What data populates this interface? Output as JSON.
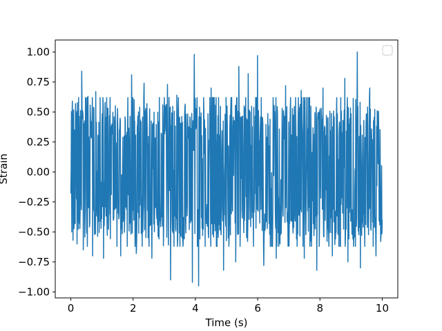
{
  "chart_data": {
    "type": "line",
    "title": "",
    "xlabel": "Time (s)",
    "ylabel": "Strain",
    "xlim": [
      -0.5,
      10.5
    ],
    "ylim": [
      -1.05,
      1.1
    ],
    "xticks": [
      0,
      2,
      4,
      6,
      8,
      10
    ],
    "xtick_labels": [
      "0",
      "2",
      "4",
      "6",
      "8",
      "10"
    ],
    "yticks": [
      -1.0,
      -0.75,
      -0.5,
      -0.25,
      0.0,
      0.25,
      0.5,
      0.75,
      1.0
    ],
    "ytick_labels": [
      "−1.00",
      "−0.75",
      "−0.50",
      "−0.25",
      "0.00",
      "0.25",
      "0.50",
      "0.75",
      "1.00"
    ],
    "grid": false,
    "legend": {
      "placement": "top-right",
      "entries": []
    },
    "series": [
      {
        "color": "#1f77b4",
        "description_of_signal": "",
        "x_start": 0,
        "x_end": 10,
        "samples": 1000,
        "peaks": [
          {
            "x": 0.0,
            "y": -0.18
          },
          {
            "x": 0.05,
            "y": 0.59
          },
          {
            "x": 0.07,
            "y": -0.57
          },
          {
            "x": 0.15,
            "y": 0.57
          },
          {
            "x": 0.2,
            "y": -0.6
          },
          {
            "x": 0.35,
            "y": 0.84
          },
          {
            "x": 0.4,
            "y": -0.65
          },
          {
            "x": 0.55,
            "y": 0.63
          },
          {
            "x": 0.7,
            "y": -0.7
          },
          {
            "x": 0.8,
            "y": 0.67
          },
          {
            "x": 1.05,
            "y": -0.72
          },
          {
            "x": 1.1,
            "y": 0.58
          },
          {
            "x": 1.6,
            "y": -0.7
          },
          {
            "x": 1.95,
            "y": 0.81
          },
          {
            "x": 2.1,
            "y": -0.68
          },
          {
            "x": 2.35,
            "y": 0.74
          },
          {
            "x": 2.6,
            "y": -0.72
          },
          {
            "x": 3.1,
            "y": 0.73
          },
          {
            "x": 3.2,
            "y": -0.9
          },
          {
            "x": 3.4,
            "y": 0.64
          },
          {
            "x": 3.9,
            "y": -0.92
          },
          {
            "x": 3.96,
            "y": 0.98
          },
          {
            "x": 4.1,
            "y": -0.95
          },
          {
            "x": 4.5,
            "y": 0.7
          },
          {
            "x": 4.9,
            "y": -0.82
          },
          {
            "x": 5.3,
            "y": -0.75
          },
          {
            "x": 5.4,
            "y": 0.88
          },
          {
            "x": 5.7,
            "y": 0.82
          },
          {
            "x": 6.0,
            "y": 0.97
          },
          {
            "x": 6.2,
            "y": -0.78
          },
          {
            "x": 6.6,
            "y": -0.72
          },
          {
            "x": 6.9,
            "y": 0.72
          },
          {
            "x": 7.4,
            "y": 0.68
          },
          {
            "x": 7.5,
            "y": -0.72
          },
          {
            "x": 7.9,
            "y": -0.82
          },
          {
            "x": 8.1,
            "y": 0.7
          },
          {
            "x": 8.4,
            "y": -0.7
          },
          {
            "x": 8.8,
            "y": 0.78
          },
          {
            "x": 8.9,
            "y": -0.75
          },
          {
            "x": 9.2,
            "y": 1.0
          },
          {
            "x": 9.3,
            "y": -0.8
          },
          {
            "x": 9.6,
            "y": 0.7
          },
          {
            "x": 9.8,
            "y": -0.7
          },
          {
            "x": 9.95,
            "y": -0.58
          },
          {
            "x": 10.0,
            "y": -0.4
          }
        ]
      }
    ]
  }
}
